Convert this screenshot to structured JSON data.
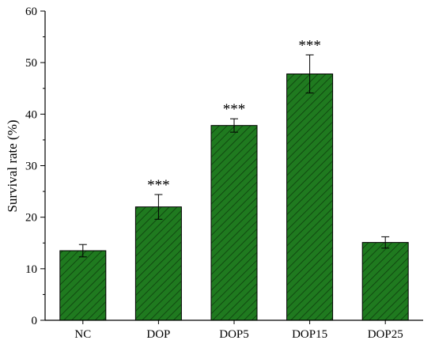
{
  "chart_data": {
    "type": "bar",
    "ylabel": "Survival rate (%)",
    "xlabel": "",
    "ylim": [
      0,
      60
    ],
    "yticks": [
      0,
      10,
      20,
      30,
      40,
      50,
      60
    ],
    "categories": [
      "NC",
      "DOP",
      "DOP5",
      "DOP15",
      "DOP25"
    ],
    "values": [
      13.5,
      22.0,
      37.8,
      47.8,
      15.1
    ],
    "errors": [
      1.2,
      2.4,
      1.3,
      3.7,
      1.1
    ],
    "annotations": [
      "",
      "***",
      "***",
      "***",
      ""
    ],
    "grid": false,
    "bar_fill": "#1f7a1f",
    "bar_hatch": "diagonal"
  }
}
